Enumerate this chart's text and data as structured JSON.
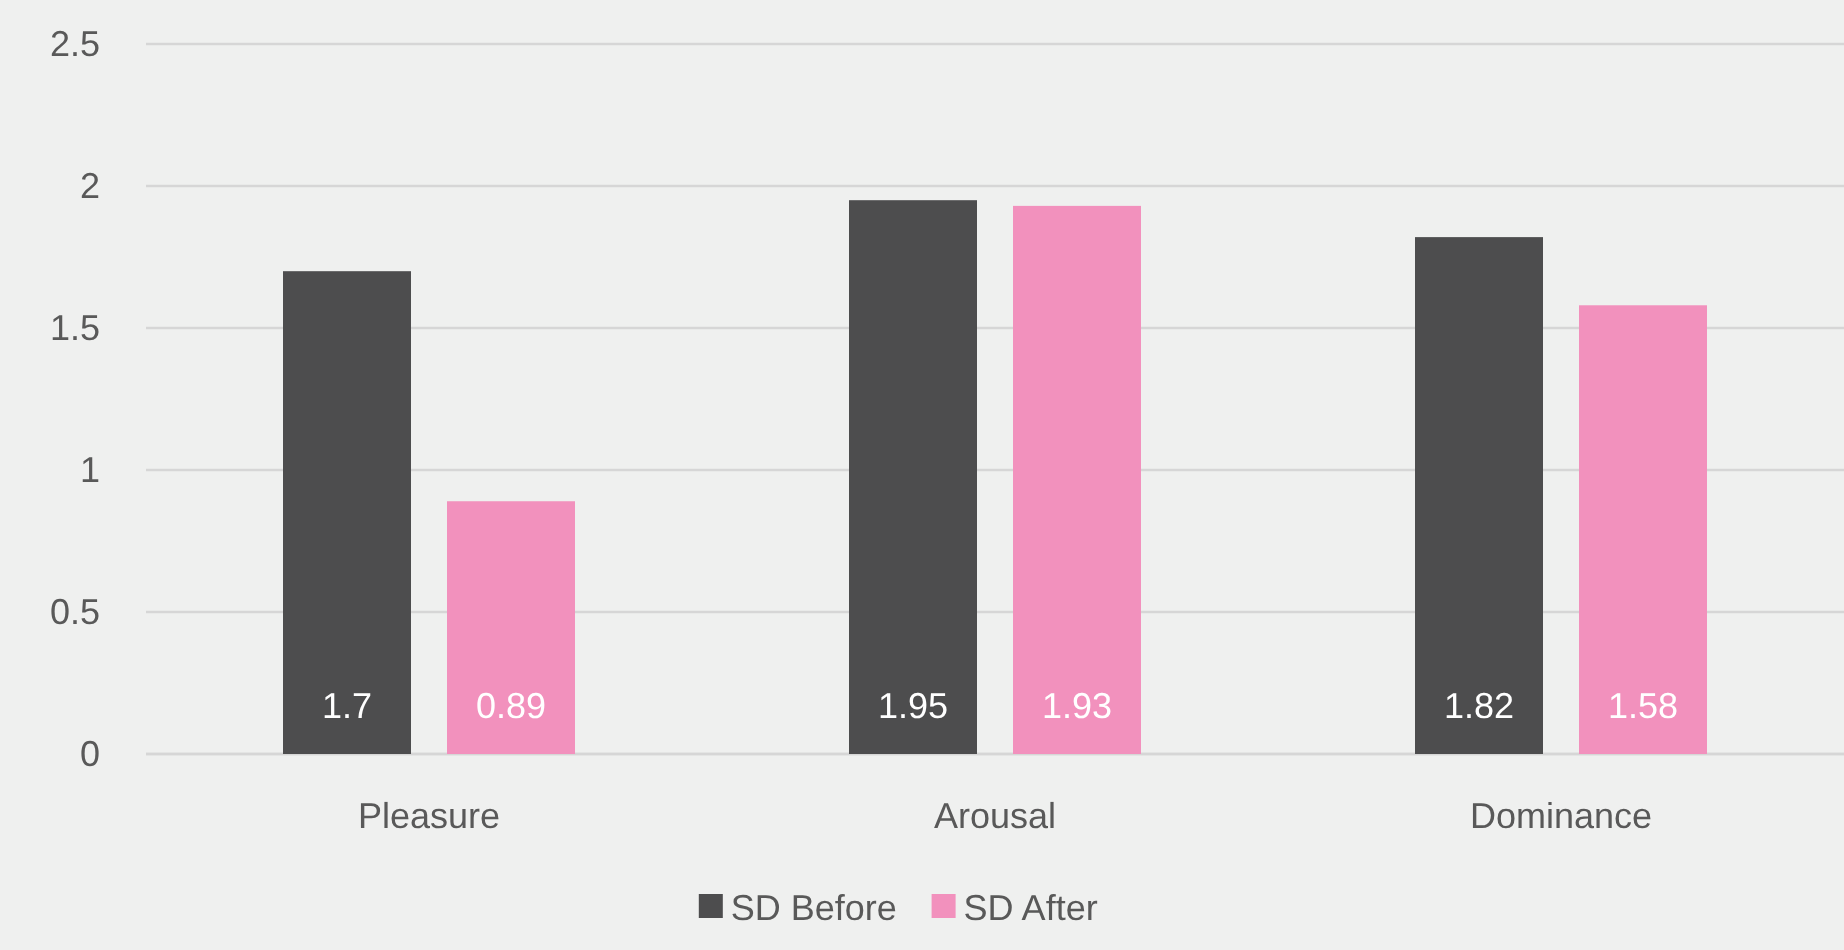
{
  "chart_data": {
    "type": "bar",
    "categories": [
      "Pleasure",
      "Arousal",
      "Dominance"
    ],
    "series": [
      {
        "name": "SD Before",
        "color": "#4d4d4e",
        "values": [
          1.7,
          1.95,
          1.82
        ]
      },
      {
        "name": "SD After",
        "color": "#f291bd",
        "values": [
          0.89,
          1.93,
          1.58
        ]
      }
    ],
    "ylim": [
      0,
      2.5
    ],
    "yticks": [
      0,
      0.5,
      1,
      1.5,
      2,
      2.5
    ],
    "grid": "y",
    "legend": "bottom",
    "data_labels": true
  }
}
